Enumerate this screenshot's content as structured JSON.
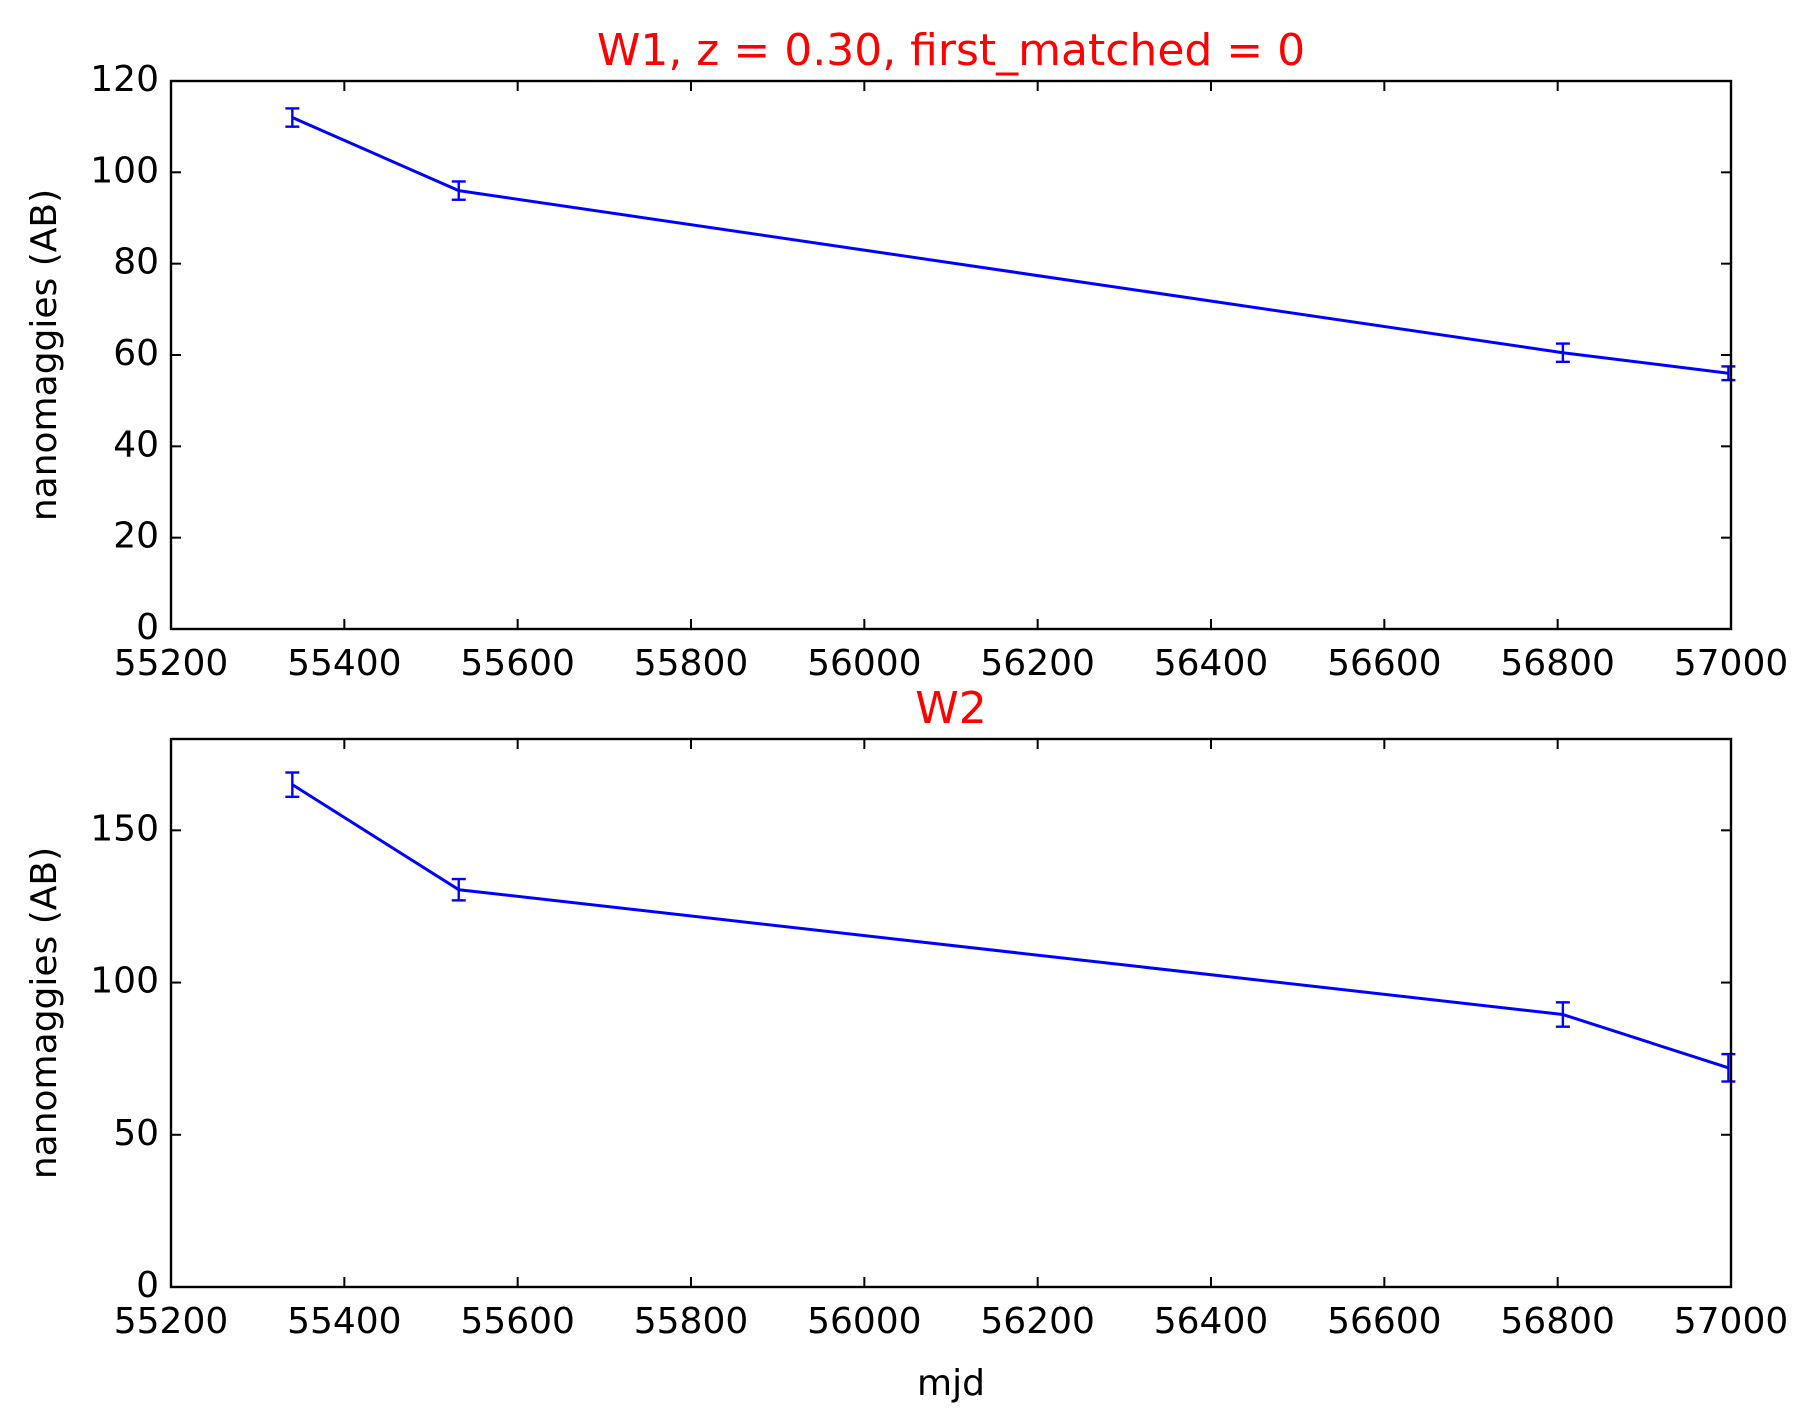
{
  "chart_data": [
    {
      "type": "line",
      "title": "W1, z = 0.30, first_matched = 0",
      "xlabel": "",
      "ylabel": "nanomaggies (AB)",
      "xlim": [
        55200,
        57000
      ],
      "ylim": [
        0,
        120
      ],
      "xticks": [
        "55200",
        "55400",
        "55600",
        "55800",
        "56000",
        "56200",
        "56400",
        "56600",
        "56800",
        "57000"
      ],
      "yticks": [
        "0",
        "20",
        "40",
        "60",
        "80",
        "100",
        "120"
      ],
      "grid": false,
      "color": "#0000ff",
      "title_color": "#ff0000",
      "series": [
        {
          "x": [
            55340,
            55532,
            56806,
            56997
          ],
          "y": [
            112,
            96,
            60.5,
            56
          ],
          "yerr": [
            2,
            2,
            2,
            1.5
          ]
        }
      ]
    },
    {
      "type": "line",
      "title": "W2",
      "xlabel": "mjd",
      "ylabel": "nanomaggies (AB)",
      "xlim": [
        55200,
        57000
      ],
      "ylim": [
        0,
        180
      ],
      "xticks": [
        "55200",
        "55400",
        "55600",
        "55800",
        "56000",
        "56200",
        "56400",
        "56600",
        "56800",
        "57000"
      ],
      "yticks": [
        "0",
        "50",
        "100",
        "150"
      ],
      "grid": false,
      "color": "#0000ff",
      "title_color": "#ff0000",
      "series": [
        {
          "x": [
            55340,
            55532,
            56806,
            56997
          ],
          "y": [
            165,
            130.5,
            89.5,
            72
          ],
          "yerr": [
            4,
            3.5,
            4,
            4.5
          ]
        }
      ]
    }
  ]
}
